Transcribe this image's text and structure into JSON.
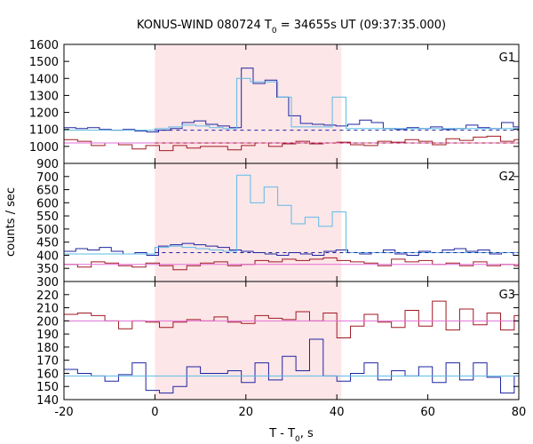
{
  "chart_data": {
    "type": "line",
    "title": "KONUS-WIND 080724 T",
    "title_sub": "0",
    "title_rest": " = 34655s UT (09:37:35.000)",
    "xlabel": "T - T",
    "xlabel_sub": "0",
    "xlabel_rest": ", s",
    "ylabel": "counts / sec",
    "xlim": [
      -20,
      80
    ],
    "xticks": [
      "-20",
      "0",
      "20",
      "40",
      "60",
      "80"
    ],
    "shaded_interval": [
      0,
      41
    ],
    "colors": {
      "blue": "#1e24a0",
      "cyan": "#5bbbe6",
      "red": "#a01822",
      "pink": "#e36fd8",
      "shade": "#fde6e8"
    },
    "panels": [
      {
        "label": "G1",
        "ylim": [
          900,
          1600
        ],
        "yticks": [
          "900",
          "1000",
          "1100",
          "1200",
          "1300",
          "1400",
          "1500",
          "1600"
        ],
        "series": [
          {
            "color": "blue",
            "x": [
              -20,
              -17.4,
              -14.8,
              -12.2,
              -9.6,
              -7,
              -4.4,
              -1.8,
              0.8,
              3.4,
              6,
              8.6,
              11.2,
              13.8,
              16.4,
              19,
              21.6,
              24.2,
              26.8,
              29.4,
              32,
              34.6,
              37.2,
              39.8,
              42.4,
              45,
              47.6,
              50.2,
              52.8,
              55.4,
              58,
              60.6,
              63.2,
              65.8,
              68.4,
              71,
              73.6,
              76.2,
              78.8,
              80
            ],
            "y": [
              1110,
              1105,
              1110,
              1100,
              1095,
              1100,
              1090,
              1085,
              1095,
              1105,
              1140,
              1150,
              1130,
              1120,
              1110,
              1460,
              1370,
              1390,
              1290,
              1180,
              1135,
              1130,
              1125,
              1120,
              1130,
              1155,
              1140,
              1105,
              1100,
              1110,
              1105,
              1115,
              1100,
              1105,
              1125,
              1110,
              1105,
              1140,
              1115,
              1110
            ]
          },
          {
            "color": "cyan",
            "x": [
              -20,
              0,
              0,
              3,
              6,
              9,
              12,
              15,
              18,
              21,
              24,
              27,
              30,
              33,
              36,
              39,
              42,
              80
            ],
            "y": [
              1095,
              1095,
              1105,
              1115,
              1125,
              1120,
              1110,
              1105,
              1400,
              1380,
              1380,
              1290,
              1115,
              1115,
              1115,
              1290,
              1105,
              1095
            ]
          },
          {
            "color": "red",
            "x": [
              -20,
              -17,
              -14,
              -11,
              -8,
              -5,
              -2,
              1,
              4,
              7,
              10,
              13,
              16,
              19,
              22,
              25,
              28,
              31,
              34,
              37,
              40,
              43,
              46,
              49,
              52,
              55,
              58,
              61,
              64,
              67,
              70,
              73,
              76,
              79,
              80
            ],
            "y": [
              1040,
              1030,
              1005,
              1020,
              1010,
              985,
              1005,
              975,
              1005,
              990,
              1000,
              1000,
              980,
              1005,
              1020,
              1000,
              1015,
              1030,
              1015,
              1020,
              1025,
              1010,
              1005,
              1030,
              1025,
              1040,
              1030,
              1010,
              1045,
              1035,
              1055,
              1060,
              1030,
              1040,
              1040
            ]
          },
          {
            "color": "pink",
            "x": [
              -20,
              80
            ],
            "y": [
              1020,
              1040
            ]
          }
        ],
        "dashed_levels": [
          {
            "color": "blue",
            "value": 1095,
            "from": 0,
            "to": 80
          },
          {
            "color": "red",
            "value": 1020,
            "from": 0,
            "to": 80
          }
        ]
      },
      {
        "label": "G2",
        "ylim": [
          300,
          750
        ],
        "yticks": [
          "300",
          "350",
          "400",
          "450",
          "500",
          "550",
          "600",
          "650",
          "700"
        ],
        "series": [
          {
            "color": "blue",
            "x": [
              -20,
              -17.4,
              -14.8,
              -12.2,
              -9.6,
              -7,
              -4.4,
              -1.8,
              0.8,
              3.4,
              6,
              8.6,
              11.2,
              13.8,
              16.4,
              19,
              21.6,
              24.2,
              26.8,
              29.4,
              32,
              34.6,
              37.2,
              39.8,
              42.4,
              45,
              47.6,
              50.2,
              52.8,
              55.4,
              58,
              60.6,
              63.2,
              65.8,
              68.4,
              71,
              73.6,
              76.2,
              78.8,
              80
            ],
            "y": [
              415,
              425,
              420,
              430,
              415,
              405,
              410,
              400,
              435,
              440,
              445,
              440,
              435,
              430,
              420,
              415,
              410,
              405,
              400,
              410,
              405,
              400,
              415,
              420,
              410,
              405,
              410,
              420,
              405,
              400,
              415,
              410,
              420,
              425,
              415,
              420,
              405,
              410,
              400,
              405
            ]
          },
          {
            "color": "cyan",
            "x": [
              -20,
              0,
              0,
              3,
              6,
              9,
              12,
              15,
              18,
              21,
              24,
              27,
              30,
              33,
              36,
              39,
              42,
              80
            ],
            "y": [
              405,
              405,
              430,
              435,
              430,
              425,
              420,
              415,
              705,
              600,
              660,
              590,
              520,
              545,
              510,
              565,
              410,
              405
            ]
          },
          {
            "color": "red",
            "x": [
              -20,
              -17,
              -14,
              -11,
              -8,
              -5,
              -2,
              1,
              4,
              7,
              10,
              13,
              16,
              19,
              22,
              25,
              28,
              31,
              34,
              37,
              40,
              43,
              46,
              49,
              52,
              55,
              58,
              61,
              64,
              67,
              70,
              73,
              76,
              79,
              80
            ],
            "y": [
              365,
              355,
              375,
              370,
              360,
              355,
              370,
              360,
              345,
              360,
              370,
              375,
              360,
              365,
              380,
              375,
              385,
              380,
              385,
              390,
              380,
              375,
              370,
              360,
              385,
              375,
              380,
              365,
              370,
              360,
              375,
              360,
              365,
              360,
              360
            ]
          },
          {
            "color": "pink",
            "x": [
              -20,
              80
            ],
            "y": [
              365,
              375
            ]
          }
        ],
        "dashed_levels": [
          {
            "color": "blue",
            "value": 410,
            "from": 0,
            "to": 80
          }
        ]
      },
      {
        "label": "G3",
        "ylim": [
          140,
          230
        ],
        "yticks": [
          "140",
          "150",
          "160",
          "170",
          "180",
          "190",
          "200",
          "210",
          "220"
        ],
        "series": [
          {
            "color": "red",
            "x": [
              -20,
              -17,
              -14,
              -11,
              -8,
              -5,
              -2,
              1,
              4,
              7,
              10,
              13,
              16,
              19,
              22,
              25,
              28,
              31,
              34,
              37,
              40,
              43,
              46,
              49,
              52,
              55,
              58,
              61,
              64,
              67,
              70,
              73,
              76,
              79,
              80
            ],
            "y": [
              205,
              206,
              204,
              200,
              194,
              200,
              199,
              195,
              199,
              201,
              200,
              203,
              199,
              198,
              204,
              202,
              201,
              207,
              200,
              206,
              187,
              196,
              205,
              199,
              195,
              208,
              196,
              215,
              193,
              209,
              197,
              206,
              193,
              204,
              199
            ]
          },
          {
            "color": "pink",
            "x": [
              -20,
              80
            ],
            "y": [
              200,
              200
            ]
          },
          {
            "color": "blue",
            "x": [
              -20,
              -17,
              -14,
              -11,
              -8,
              -5,
              -2,
              1,
              4,
              7,
              10,
              13,
              16,
              19,
              22,
              25,
              28,
              31,
              34,
              37,
              40,
              43,
              46,
              49,
              52,
              55,
              58,
              61,
              64,
              67,
              70,
              73,
              76,
              79,
              80
            ],
            "y": [
              163,
              160,
              158,
              154,
              159,
              168,
              147,
              145,
              150,
              165,
              160,
              160,
              162,
              153,
              168,
              155,
              173,
              162,
              186,
              158,
              154,
              160,
              168,
              155,
              162,
              158,
              165,
              153,
              168,
              155,
              168,
              157,
              145,
              158,
              147
            ]
          },
          {
            "color": "cyan",
            "x": [
              -20,
              80
            ],
            "y": [
              158,
              158
            ]
          }
        ],
        "dashed_levels": []
      }
    ]
  }
}
